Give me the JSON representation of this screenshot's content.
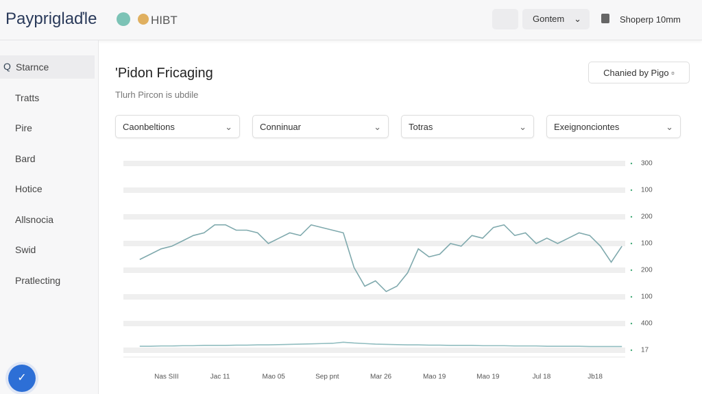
{
  "header": {
    "brand": "Paypriglaďle",
    "badge": "HIBT",
    "menu": "Gontem",
    "account": "Shoperp 10mm"
  },
  "sidebar": {
    "items": [
      "Starnce",
      "Tratts",
      "Pire",
      "Bard",
      "Hotice",
      "Allsnocia",
      "Swid",
      "Pratlecting"
    ]
  },
  "page": {
    "title": "'Pidon Fricaging",
    "subtitle": "Tlurh Pircon is ubdile",
    "button": "Chanied by Pigo",
    "filters": [
      "Caonbeltions",
      "Conninuar",
      "Totras",
      "Exeignonciontes"
    ]
  },
  "chart_data": {
    "type": "line",
    "x": [
      -0.5,
      -0.3,
      -0.1,
      0.1,
      0.3,
      0.5,
      0.7,
      0.9,
      1.1,
      1.3,
      1.5,
      1.7,
      1.9,
      2.1,
      2.3,
      2.5,
      2.7,
      2.9,
      3.1,
      3.3,
      3.5,
      3.7,
      3.9,
      4.1,
      4.3,
      4.5,
      4.7,
      4.9,
      5.1,
      5.3,
      5.5,
      5.7,
      5.9,
      6.1,
      6.3,
      6.5,
      6.7,
      6.9,
      7.1,
      7.3,
      7.5,
      7.7,
      7.9,
      8.1,
      8.3,
      8.5
    ],
    "series": [
      {
        "color": "#7fa9ad",
        "values": [
          3.4,
          3.6,
          3.8,
          3.9,
          4.1,
          4.3,
          4.4,
          4.7,
          4.7,
          4.5,
          4.5,
          4.4,
          4.0,
          4.2,
          4.4,
          4.3,
          4.7,
          4.6,
          4.5,
          4.4,
          3.1,
          2.4,
          2.6,
          2.2,
          2.4,
          2.9,
          3.8,
          3.5,
          3.6,
          4.0,
          3.9,
          4.3,
          4.2,
          4.6,
          4.7,
          4.3,
          4.4,
          4.0,
          4.2,
          4.0,
          4.2,
          4.4,
          4.3,
          3.9,
          3.3,
          3.9
        ]
      },
      {
        "color": "#8fbcbf",
        "values": [
          0.15,
          0.15,
          0.16,
          0.16,
          0.17,
          0.17,
          0.18,
          0.18,
          0.18,
          0.19,
          0.19,
          0.2,
          0.2,
          0.21,
          0.22,
          0.23,
          0.24,
          0.25,
          0.26,
          0.3,
          0.27,
          0.25,
          0.23,
          0.22,
          0.21,
          0.2,
          0.2,
          0.19,
          0.19,
          0.18,
          0.18,
          0.18,
          0.17,
          0.17,
          0.17,
          0.16,
          0.16,
          0.16,
          0.15,
          0.15,
          0.15,
          0.15,
          0.14,
          0.14,
          0.14,
          0.14
        ]
      }
    ],
    "xlim": [
      -0.6,
      8.6
    ],
    "xticks": [
      {
        "value": 0,
        "label": "Nas SIII"
      },
      {
        "value": 1,
        "label": "Jac 11"
      },
      {
        "value": 2,
        "label": "Mao 05"
      },
      {
        "value": 3,
        "label": "Sep pnt"
      },
      {
        "value": 4,
        "label": "Mar 26"
      },
      {
        "value": 5,
        "label": "Mao 19"
      },
      {
        "value": 6,
        "label": "Mao 19"
      },
      {
        "value": 7,
        "label": "Jul 18"
      },
      {
        "value": 8,
        "label": "Jb18"
      }
    ],
    "ylim": [
      0,
      7
    ],
    "yticks": [
      {
        "value": 7,
        "label": "300"
      },
      {
        "value": 6,
        "label": "100"
      },
      {
        "value": 5,
        "label": "200"
      },
      {
        "value": 4,
        "label": "100"
      },
      {
        "value": 3,
        "label": "200"
      },
      {
        "value": 2,
        "label": "100"
      },
      {
        "value": 1,
        "label": "400"
      },
      {
        "value": 0,
        "label": "17"
      }
    ],
    "grid": true
  }
}
